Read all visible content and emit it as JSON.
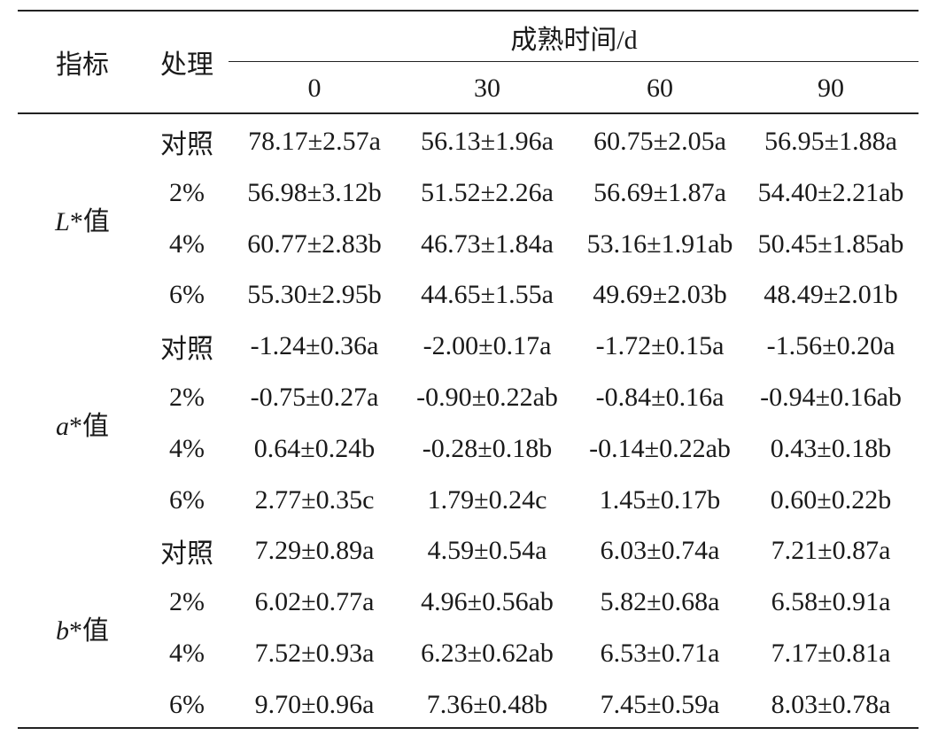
{
  "header": {
    "indicator": "指标",
    "treatment": "处理",
    "group": "成熟时间/d",
    "times": [
      "0",
      "30",
      "60",
      "90"
    ]
  },
  "groups": [
    {
      "label": "L*值",
      "rows": [
        {
          "treatment": "对照",
          "values": [
            "78.17±2.57a",
            "56.13±1.96a",
            "60.75±2.05a",
            "56.95±1.88a"
          ]
        },
        {
          "treatment": "2%",
          "values": [
            "56.98±3.12b",
            "51.52±2.26a",
            "56.69±1.87a",
            "54.40±2.21ab"
          ]
        },
        {
          "treatment": "4%",
          "values": [
            "60.77±2.83b",
            "46.73±1.84a",
            "53.16±1.91ab",
            "50.45±1.85ab"
          ]
        },
        {
          "treatment": "6%",
          "values": [
            "55.30±2.95b",
            "44.65±1.55a",
            "49.69±2.03b",
            "48.49±2.01b"
          ]
        }
      ]
    },
    {
      "label": "a*值",
      "rows": [
        {
          "treatment": "对照",
          "values": [
            "-1.24±0.36a",
            "-2.00±0.17a",
            "-1.72±0.15a",
            "-1.56±0.20a"
          ]
        },
        {
          "treatment": "2%",
          "values": [
            "-0.75±0.27a",
            "-0.90±0.22ab",
            "-0.84±0.16a",
            "-0.94±0.16ab"
          ]
        },
        {
          "treatment": "4%",
          "values": [
            "0.64±0.24b",
            "-0.28±0.18b",
            "-0.14±0.22ab",
            "0.43±0.18b"
          ]
        },
        {
          "treatment": "6%",
          "values": [
            "2.77±0.35c",
            "1.79±0.24c",
            "1.45±0.17b",
            "0.60±0.22b"
          ]
        }
      ]
    },
    {
      "label": "b*值",
      "rows": [
        {
          "treatment": "对照",
          "values": [
            "7.29±0.89a",
            "4.59±0.54a",
            "6.03±0.74a",
            "7.21±0.87a"
          ]
        },
        {
          "treatment": "2%",
          "values": [
            "6.02±0.77a",
            "4.96±0.56ab",
            "5.82±0.68a",
            "6.58±0.91a"
          ]
        },
        {
          "treatment": "4%",
          "values": [
            "7.52±0.93a",
            "6.23±0.62ab",
            "6.53±0.71a",
            "7.17±0.81a"
          ]
        },
        {
          "treatment": "6%",
          "values": [
            "9.70±0.96a",
            "7.36±0.48b",
            "7.45±0.59a",
            "8.03±0.78a"
          ]
        }
      ]
    }
  ]
}
